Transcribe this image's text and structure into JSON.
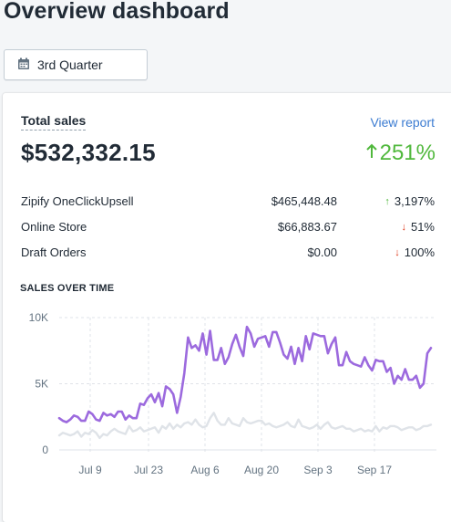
{
  "page": {
    "title": "Overview dashboard"
  },
  "date_picker": {
    "label": "3rd Quarter",
    "icon": "calendar-icon"
  },
  "card": {
    "title": "Total sales",
    "view_report": "View report",
    "total": "$532,332.15",
    "change": "251%",
    "change_direction": "up",
    "rows": [
      {
        "name": "Zipify OneClickUpsell",
        "amount": "$465,448.48",
        "change": "3,197%",
        "direction": "up"
      },
      {
        "name": "Online Store",
        "amount": "$66,883.67",
        "change": "51%",
        "direction": "down"
      },
      {
        "name": "Draft Orders",
        "amount": "$0.00",
        "change": "100%",
        "direction": "down"
      }
    ],
    "chart_heading": "SALES OVER TIME"
  },
  "colors": {
    "up": "#50b83c",
    "down": "#de3618",
    "link": "#3b7bd1",
    "current_series": "#9c6ade",
    "previous_series": "#dfe3e8"
  },
  "chart_data": {
    "type": "line",
    "title": "SALES OVER TIME",
    "ylim": [
      0,
      10000
    ],
    "y_ticks": [
      {
        "label": "0",
        "value": 0
      },
      {
        "label": "5K",
        "value": 5000
      },
      {
        "label": "10K",
        "value": 10000
      }
    ],
    "x_ticks": [
      "Jul 9",
      "Jul 23",
      "Aug 6",
      "Aug 20",
      "Sep 3",
      "Sep 17"
    ],
    "x_start": "2018-07-01",
    "grid": true,
    "series": [
      {
        "values": [
          2400,
          2200,
          2100,
          2300,
          2600,
          2500,
          2200,
          2200,
          2900,
          2700,
          2300,
          2200,
          2800,
          2600,
          2700,
          2500,
          2900,
          2900,
          2300,
          2600,
          2400,
          2400,
          3500,
          3400,
          3900,
          4200,
          3600,
          4300,
          3300,
          4800,
          4600,
          4200,
          2800,
          4000,
          5800,
          8500,
          7700,
          7900,
          7500,
          8800,
          7200,
          9000,
          6800,
          6800,
          7700,
          6500,
          7000,
          8000,
          8700,
          7800,
          7100,
          9300,
          8800,
          7800,
          8400,
          8500,
          8600,
          7800,
          8900,
          8900,
          8100,
          7200,
          6900,
          7800,
          6500,
          7700,
          6700,
          8600,
          7600,
          8800,
          8700,
          8600,
          8600,
          7300,
          8000,
          8500,
          6400,
          6400,
          7400,
          6700,
          6500,
          6400,
          6300,
          7000,
          6400,
          6000,
          6800,
          6700,
          6700,
          5900,
          6200,
          5000,
          5600,
          5300,
          6100,
          5300,
          5300,
          5600,
          4700,
          5000,
          7300,
          7700
        ]
      },
      {
        "values": [
          1100,
          1300,
          1200,
          1100,
          1200,
          1400,
          1000,
          1300,
          1200,
          1500,
          1300,
          900,
          1200,
          1100,
          1400,
          1600,
          1400,
          1300,
          1200,
          1800,
          1400,
          1500,
          1700,
          1400,
          1500,
          1600,
          1700,
          1300,
          1800,
          1600,
          2000,
          1600,
          1900,
          1700,
          2000,
          2100,
          1900,
          2300,
          1900,
          1700,
          1800,
          2400,
          2800,
          2200,
          1900,
          1900,
          2400,
          2000,
          1900,
          1800,
          2400,
          2100,
          2000,
          2100,
          2200,
          2200,
          1900,
          2000,
          1800,
          1700,
          1800,
          1900,
          2100,
          1800,
          1700,
          2300,
          1800,
          1700,
          1600,
          1700,
          1900,
          1600,
          1900,
          2100,
          1700,
          1600,
          1700,
          1800,
          1600,
          1600,
          1400,
          1500,
          1600,
          1400,
          1500,
          1400,
          1800,
          1400,
          1700,
          1600,
          1800,
          1800,
          1700,
          1500,
          1600,
          1700,
          1700,
          1500,
          1600,
          1800,
          1800,
          1900
        ]
      }
    ]
  }
}
